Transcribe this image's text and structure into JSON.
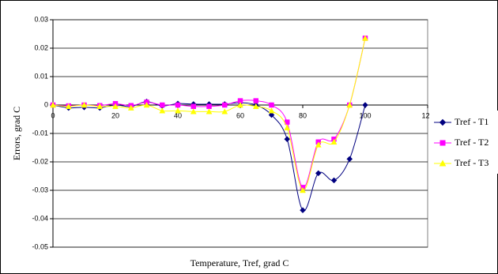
{
  "chart_data": {
    "type": "line",
    "y_label": "Errors, grad C",
    "x_label": "Temperature, Tref, grad C",
    "x": [
      0,
      5,
      10,
      15,
      20,
      25,
      30,
      35,
      40,
      45,
      50,
      55,
      60,
      65,
      70,
      75,
      80,
      85,
      90,
      95,
      100
    ],
    "series": [
      {
        "name": "Tref - T1",
        "color": "#000080",
        "values": [
          0,
          -0.001,
          -0.0008,
          -0.001,
          0,
          -0.0005,
          0.0012,
          -0.0003,
          0.0005,
          0.0003,
          0.0003,
          0.0003,
          0.0008,
          0,
          -0.0035,
          -0.012,
          -0.037,
          -0.024,
          -0.0265,
          -0.019,
          0
        ]
      },
      {
        "name": "Tref - T2",
        "color": "#FF00FF",
        "values": [
          0,
          -0.0003,
          0,
          -0.0002,
          0.0005,
          -0.0002,
          0.001,
          0,
          0,
          -0.0005,
          -0.0005,
          0,
          0.0015,
          0.0015,
          0,
          -0.006,
          -0.029,
          -0.013,
          -0.012,
          0,
          0.0235
        ]
      },
      {
        "name": "Tref - T3",
        "color": "#FFFF00",
        "values": [
          0,
          -0.0005,
          0,
          -0.0005,
          -0.0005,
          -0.001,
          0,
          -0.002,
          -0.002,
          -0.0023,
          -0.0023,
          -0.0023,
          0,
          -0.0005,
          -0.002,
          -0.008,
          -0.03,
          -0.014,
          -0.013,
          0,
          0.0235
        ]
      }
    ],
    "xlim": [
      0,
      120
    ],
    "xticks": [
      0,
      20,
      40,
      60,
      80,
      100,
      120
    ],
    "ylim": [
      -0.05,
      0.03
    ],
    "yticks": [
      0.03,
      0.02,
      0.01,
      0,
      -0.01,
      -0.02,
      -0.03,
      -0.04,
      -0.05
    ],
    "grid": true
  }
}
